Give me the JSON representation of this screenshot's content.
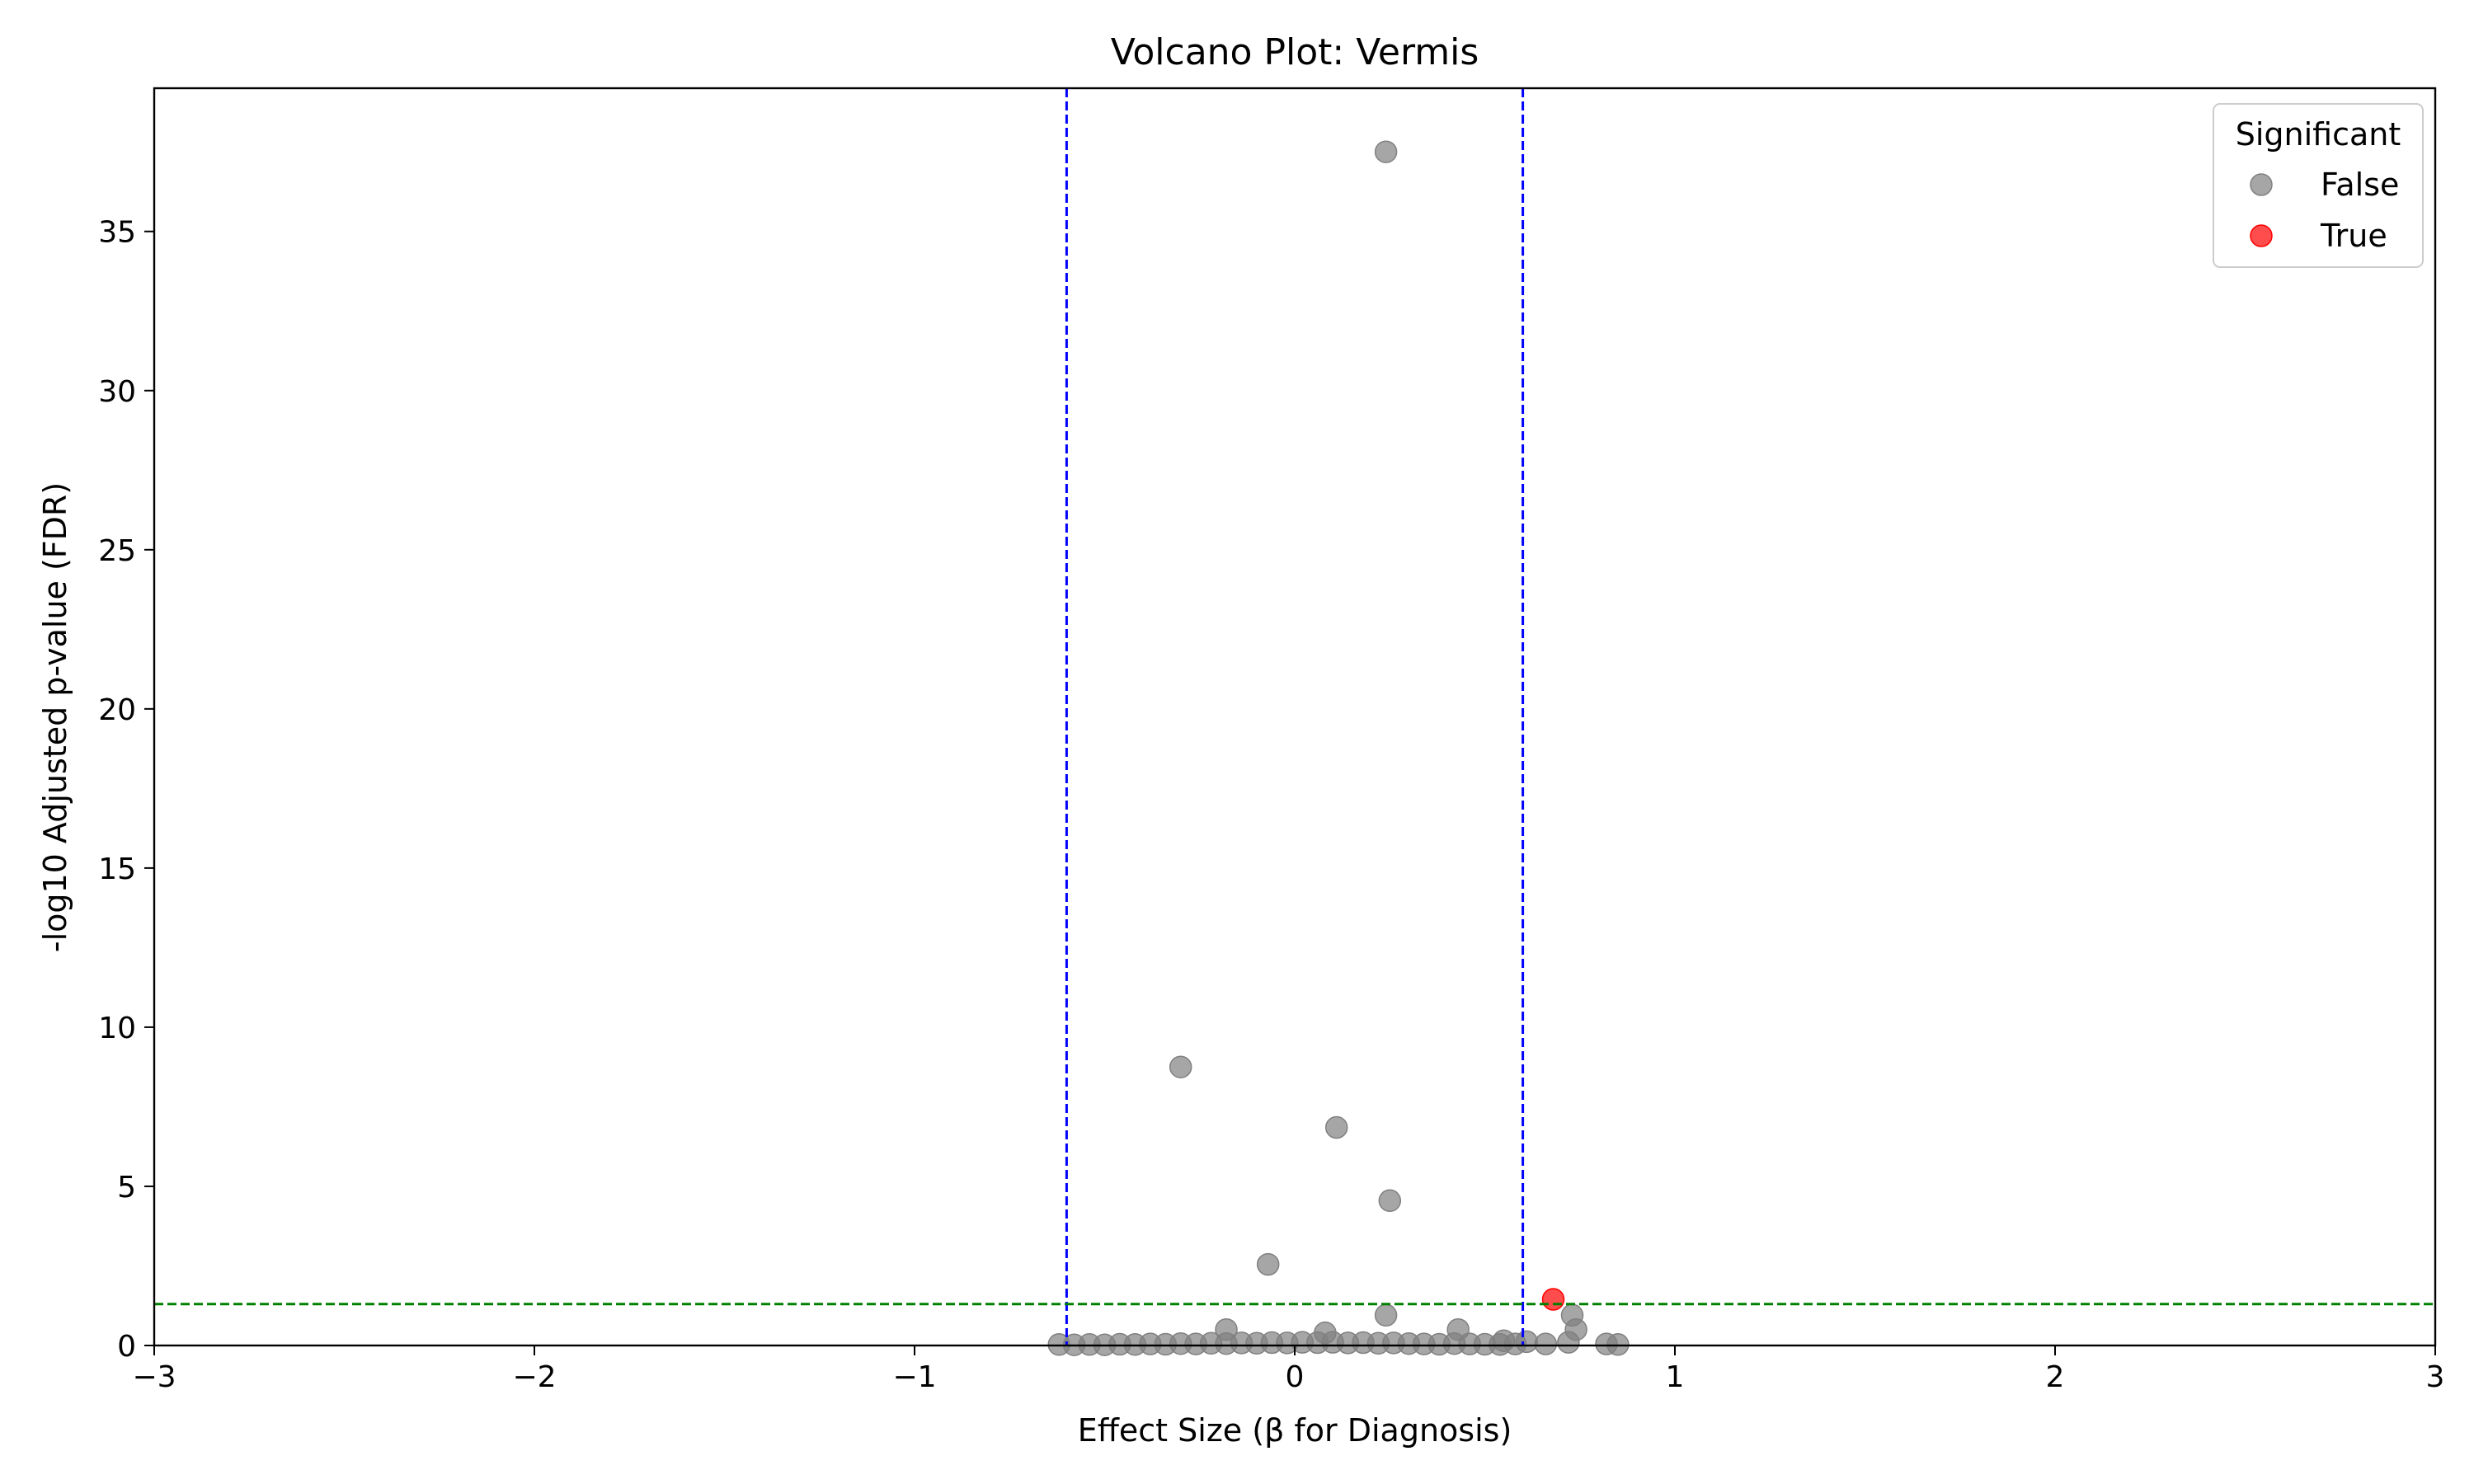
{
  "chart_data": {
    "type": "scatter",
    "title": "Volcano Plot: Vermis",
    "xlabel": "Effect Size (β for Diagnosis)",
    "ylabel": "-log10 Adjusted p-value (FDR)",
    "xlim": [
      -3,
      3
    ],
    "ylim": [
      0,
      39.5
    ],
    "x_ticks": [
      -3,
      -2,
      -1,
      0,
      1,
      2,
      3
    ],
    "x_tick_labels": [
      "−3",
      "−2",
      "−1",
      "0",
      "1",
      "2",
      "3"
    ],
    "y_ticks": [
      0,
      5,
      10,
      15,
      20,
      25,
      30,
      35
    ],
    "y_tick_labels": [
      "0",
      "5",
      "10",
      "15",
      "20",
      "25",
      "30",
      "35"
    ],
    "grid": false,
    "thresholds": {
      "vertical": [
        -0.6,
        0.6
      ],
      "vertical_color": "#0000ff",
      "horizontal": 1.3,
      "horizontal_color": "#008000"
    },
    "legend": {
      "title": "Significant",
      "placement": "top-right",
      "entries": [
        {
          "label": "False",
          "color": "#808080"
        },
        {
          "label": "True",
          "color": "#ff0000"
        }
      ]
    },
    "series": [
      {
        "name": "False",
        "color": "#808080",
        "points": [
          {
            "x": 0.24,
            "y": 37.5
          },
          {
            "x": -0.3,
            "y": 8.75
          },
          {
            "x": 0.11,
            "y": 6.85
          },
          {
            "x": 0.25,
            "y": 4.55
          },
          {
            "x": -0.07,
            "y": 2.55
          },
          {
            "x": 0.24,
            "y": 0.95
          },
          {
            "x": -0.18,
            "y": 0.5
          },
          {
            "x": 0.08,
            "y": 0.4
          },
          {
            "x": 0.43,
            "y": 0.5
          },
          {
            "x": 0.73,
            "y": 0.95
          },
          {
            "x": 0.74,
            "y": 0.5
          },
          {
            "x": 0.82,
            "y": 0.05
          },
          {
            "x": 0.85,
            "y": 0.03
          },
          {
            "x": 0.72,
            "y": 0.1
          },
          {
            "x": 0.55,
            "y": 0.15
          },
          {
            "x": 0.61,
            "y": 0.12
          },
          {
            "x": 0.66,
            "y": 0.05
          },
          {
            "x": -0.62,
            "y": 0.03
          },
          {
            "x": -0.58,
            "y": 0.02
          },
          {
            "x": -0.54,
            "y": 0.03
          },
          {
            "x": -0.5,
            "y": 0.02
          },
          {
            "x": -0.46,
            "y": 0.04
          },
          {
            "x": -0.42,
            "y": 0.03
          },
          {
            "x": -0.38,
            "y": 0.05
          },
          {
            "x": -0.34,
            "y": 0.04
          },
          {
            "x": -0.3,
            "y": 0.06
          },
          {
            "x": -0.26,
            "y": 0.05
          },
          {
            "x": -0.22,
            "y": 0.07
          },
          {
            "x": -0.18,
            "y": 0.06
          },
          {
            "x": -0.14,
            "y": 0.08
          },
          {
            "x": -0.1,
            "y": 0.07
          },
          {
            "x": -0.06,
            "y": 0.09
          },
          {
            "x": -0.02,
            "y": 0.08
          },
          {
            "x": 0.02,
            "y": 0.1
          },
          {
            "x": 0.06,
            "y": 0.09
          },
          {
            "x": 0.1,
            "y": 0.1
          },
          {
            "x": 0.14,
            "y": 0.08
          },
          {
            "x": 0.18,
            "y": 0.09
          },
          {
            "x": 0.22,
            "y": 0.07
          },
          {
            "x": 0.26,
            "y": 0.08
          },
          {
            "x": 0.3,
            "y": 0.06
          },
          {
            "x": 0.34,
            "y": 0.05
          },
          {
            "x": 0.38,
            "y": 0.04
          },
          {
            "x": 0.42,
            "y": 0.06
          },
          {
            "x": 0.46,
            "y": 0.05
          },
          {
            "x": 0.5,
            "y": 0.04
          },
          {
            "x": 0.54,
            "y": 0.03
          },
          {
            "x": 0.58,
            "y": 0.05
          }
        ]
      },
      {
        "name": "True",
        "color": "#ff0000",
        "points": [
          {
            "x": 0.68,
            "y": 1.45
          }
        ]
      }
    ]
  }
}
